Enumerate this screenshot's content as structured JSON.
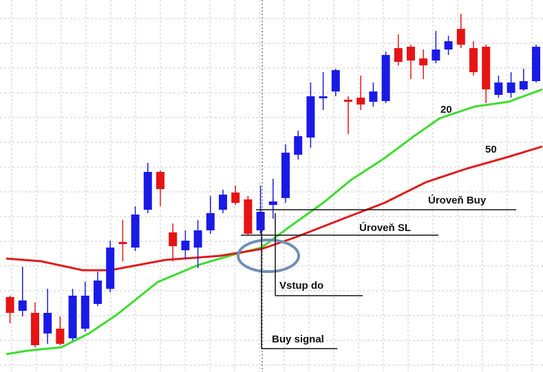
{
  "chart_data": {
    "type": "candlestick",
    "open": [
      109,
      89,
      86,
      56,
      63,
      49,
      63,
      99,
      121,
      189,
      181,
      236,
      291,
      203,
      177,
      181,
      206,
      236,
      261,
      251,
      206,
      243,
      253,
      316,
      341,
      398,
      408,
      396,
      399,
      393,
      394,
      471,
      473,
      456,
      453,
      469,
      499,
      471,
      473,
      403,
      406,
      411,
      423
    ],
    "high": [
      111,
      153,
      101,
      121,
      81,
      121,
      131,
      146,
      191,
      221,
      241,
      304,
      293,
      216,
      206,
      221,
      256,
      265,
      271,
      256,
      271,
      281,
      331,
      351,
      421,
      436,
      441,
      401,
      431,
      421,
      466,
      491,
      476,
      469,
      496,
      489,
      521,
      481,
      476,
      431,
      436,
      441,
      476
    ],
    "low": [
      71,
      81,
      36,
      41,
      39,
      46,
      59,
      96,
      116,
      161,
      176,
      231,
      241,
      161,
      164,
      151,
      201,
      231,
      243,
      199,
      201,
      223,
      246,
      309,
      326,
      381,
      401,
      346,
      381,
      386,
      391,
      446,
      426,
      426,
      449,
      461,
      471,
      431,
      391,
      399,
      399,
      409,
      421
    ],
    "close": [
      86,
      104,
      39,
      86,
      41,
      111,
      111,
      133,
      181,
      186,
      229,
      291,
      266,
      183,
      191,
      206,
      231,
      258,
      246,
      201,
      233,
      248,
      319,
      343,
      401,
      401,
      439,
      393,
      389,
      408,
      461,
      451,
      453,
      446,
      469,
      481,
      476,
      436,
      411,
      421,
      421,
      423,
      473
    ],
    "up_color": "#1a1ae6",
    "down_color": "#e61414",
    "series": [
      {
        "name": "20",
        "color": "#3ddc2e",
        "x": [
          -0.3,
          1.4,
          4.1,
          6.3,
          8.5,
          11.8,
          15.1,
          17.9,
          20.1,
          22.3,
          25,
          27.2,
          29.9,
          32.1,
          34.3,
          37.1,
          39.8,
          42.5
        ],
        "values": [
          26,
          31,
          36,
          56,
          83,
          131,
          156,
          171,
          181,
          211,
          246,
          279,
          311,
          341,
          369,
          386,
          393,
          411
        ]
      },
      {
        "name": "50",
        "color": "#e01a1a",
        "x": [
          -0.3,
          2.5,
          5.8,
          8,
          12.4,
          16.8,
          20.1,
          22.8,
          26.6,
          29.9,
          33.2,
          36.5,
          39.8,
          42.5
        ],
        "values": [
          165,
          161,
          148,
          148,
          163,
          169,
          179,
          196,
          223,
          246,
          276,
          296,
          313,
          328
        ]
      }
    ],
    "annotations": [
      "Úroveň Buy",
      "Úroveň SL",
      "Vstup do",
      "Buy signal"
    ],
    "xlim": [
      -0.8,
      42.55
    ],
    "ylim": [
      0,
      541
    ],
    "grid": true
  }
}
